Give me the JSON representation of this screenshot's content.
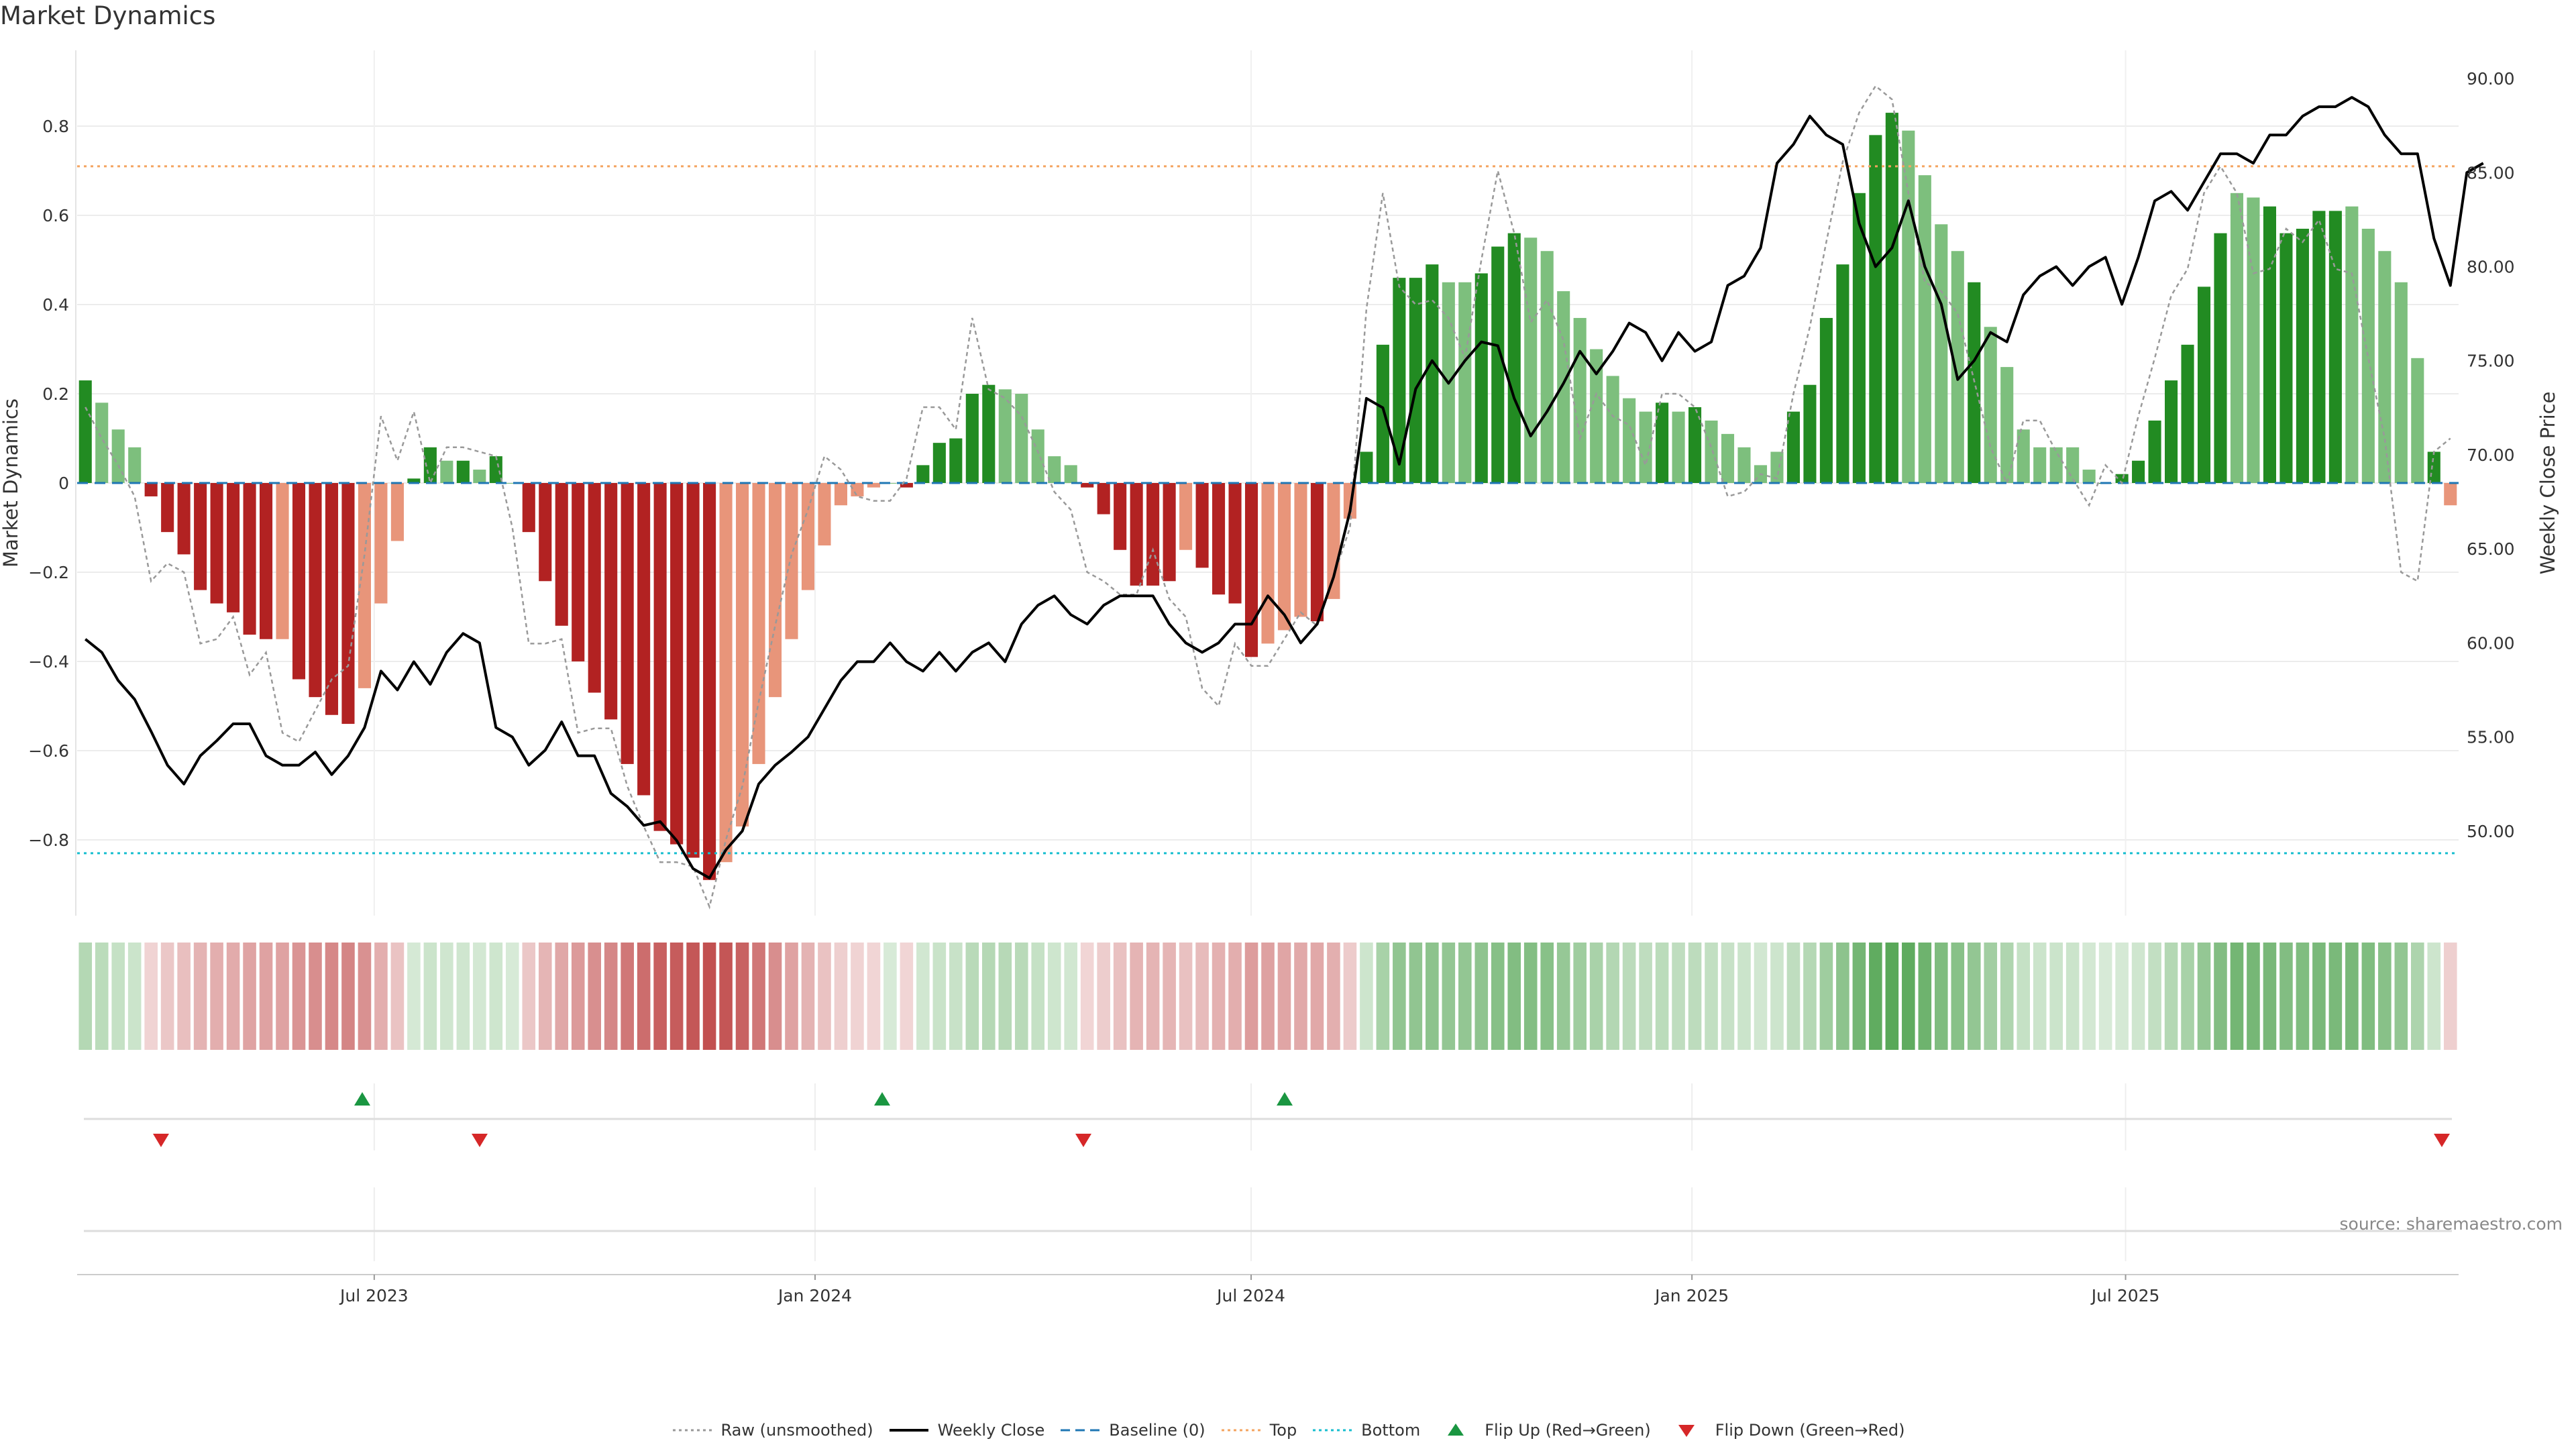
{
  "title": "Market Dynamics",
  "source_note": "source: sharemaestro.com",
  "colors": {
    "strong_green": "#228B22",
    "light_green": "#7DBF7D",
    "strong_red": "#B22222",
    "light_red": "#E8957A",
    "weekly_close": "#000000",
    "raw": "#999999",
    "baseline": "#1f77b4",
    "top_line": "#F4A460",
    "bottom_line": "#17BECF",
    "flip_up": "#1A9641",
    "flip_down": "#D62728"
  },
  "legend": [
    {
      "label": "Raw (unsmoothed)",
      "key": "raw",
      "style": "dotted",
      "icon": "dotted-line"
    },
    {
      "label": "Weekly Close",
      "key": "weekly_close",
      "style": "solid",
      "icon": "solid-line"
    },
    {
      "label": "Baseline (0)",
      "key": "baseline",
      "style": "dashed",
      "icon": "dashed-line"
    },
    {
      "label": "Top",
      "key": "top_line",
      "style": "dotted",
      "icon": "dotted-line"
    },
    {
      "label": "Bottom",
      "key": "bottom_line",
      "style": "dotted",
      "icon": "dotted-line"
    },
    {
      "label": "Flip Up (Red→Green)",
      "key": "flip_up",
      "style": "triangle-up",
      "icon": "triangle-up-icon"
    },
    {
      "label": "Flip Down (Green→Red)",
      "key": "flip_down",
      "style": "triangle-down",
      "icon": "triangle-down-icon"
    }
  ],
  "chart_data": {
    "type": "bar",
    "ylabel": "Market Dynamics",
    "ylabel_right": "Weekly Close Price",
    "ylim": [
      -0.97,
      0.97
    ],
    "ylim_right": [
      45.5,
      91.5
    ],
    "y_ticks": [
      -0.8,
      -0.6,
      -0.4,
      -0.2,
      0,
      0.2,
      0.4,
      0.6,
      0.8
    ],
    "y_tick_labels": [
      "−0.8",
      "−0.6",
      "−0.4",
      "−0.2",
      "0",
      "0.2",
      "0.4",
      "0.6",
      "0.8"
    ],
    "y_right_ticks": [
      50,
      55,
      60,
      65,
      70,
      75,
      80,
      85,
      90
    ],
    "y_right_tick_labels": [
      "50.00",
      "55.00",
      "60.00",
      "65.00",
      "70.00",
      "75.00",
      "80.00",
      "85.00",
      "90.00"
    ],
    "x_range": [
      "2023-02-27",
      "2025-11-17"
    ],
    "x_ticks": [
      "2023-07-01",
      "2024-01-01",
      "2024-07-01",
      "2025-01-01",
      "2025-07-01"
    ],
    "x_tick_labels": [
      "Jul 2023",
      "Jan 2024",
      "Jul 2024",
      "Jan 2025",
      "Jul 2025"
    ],
    "top": 0.71,
    "bottom": -0.83,
    "baseline": 0,
    "grid": true,
    "legend_position": "bottom-center",
    "series": [
      {
        "name": "Market Dynamics",
        "kind": "bar",
        "values": [
          0.23,
          0.18,
          0.12,
          0.08,
          -0.03,
          -0.11,
          -0.16,
          -0.24,
          -0.27,
          -0.29,
          -0.34,
          -0.35,
          -0.35,
          -0.44,
          -0.48,
          -0.52,
          -0.54,
          -0.46,
          -0.27,
          -0.13,
          0.01,
          0.08,
          0.05,
          0.05,
          0.03,
          0.06,
          0,
          -0.11,
          -0.22,
          -0.32,
          -0.4,
          -0.47,
          -0.53,
          -0.63,
          -0.7,
          -0.78,
          -0.81,
          -0.84,
          -0.89,
          -0.85,
          -0.77,
          -0.63,
          -0.48,
          -0.35,
          -0.24,
          -0.14,
          -0.05,
          -0.03,
          -0.01,
          0,
          -0.01,
          0.04,
          0.09,
          0.1,
          0.2,
          0.22,
          0.21,
          0.2,
          0.12,
          0.06,
          0.04,
          -0.01,
          -0.07,
          -0.15,
          -0.23,
          -0.23,
          -0.22,
          -0.15,
          -0.19,
          -0.25,
          -0.27,
          -0.39,
          -0.36,
          -0.33,
          -0.3,
          -0.31,
          -0.26,
          -0.08,
          0.07,
          0.31,
          0.46,
          0.46,
          0.49,
          0.45,
          0.45,
          0.47,
          0.53,
          0.56,
          0.55,
          0.52,
          0.43,
          0.37,
          0.3,
          0.24,
          0.19,
          0.16,
          0.18,
          0.16,
          0.17,
          0.14,
          0.11,
          0.08,
          0.04,
          0.07,
          0.16,
          0.22,
          0.37,
          0.49,
          0.65,
          0.78,
          0.83,
          0.79,
          0.69,
          0.58,
          0.52,
          0.45,
          0.35,
          0.26,
          0.12,
          0.08,
          0.08,
          0.08,
          0.03,
          0,
          0.02,
          0.05,
          0.14,
          0.23,
          0.31,
          0.44,
          0.56,
          0.65,
          0.64,
          0.62,
          0.56,
          0.57,
          0.61,
          0.61,
          0.62,
          0.57,
          0.52,
          0.45,
          0.28,
          0.07,
          -0.05
        ],
        "intensity": [
          "strong",
          "light",
          "light",
          "light",
          "strong",
          "strong",
          "strong",
          "strong",
          "strong",
          "strong",
          "strong",
          "strong",
          "light",
          "strong",
          "strong",
          "strong",
          "strong",
          "light",
          "light",
          "light",
          "strong",
          "strong",
          "light",
          "strong",
          "light",
          "strong",
          "light",
          "strong",
          "strong",
          "strong",
          "strong",
          "strong",
          "strong",
          "strong",
          "strong",
          "strong",
          "strong",
          "strong",
          "strong",
          "light",
          "light",
          "light",
          "light",
          "light",
          "light",
          "light",
          "light",
          "light",
          "light",
          "light",
          "strong",
          "strong",
          "strong",
          "strong",
          "strong",
          "strong",
          "light",
          "light",
          "light",
          "light",
          "light",
          "strong",
          "strong",
          "strong",
          "strong",
          "strong",
          "strong",
          "light",
          "strong",
          "strong",
          "strong",
          "strong",
          "light",
          "light",
          "light",
          "strong",
          "light",
          "light",
          "strong",
          "strong",
          "strong",
          "strong",
          "strong",
          "light",
          "light",
          "strong",
          "strong",
          "strong",
          "light",
          "light",
          "light",
          "light",
          "light",
          "light",
          "light",
          "light",
          "strong",
          "light",
          "strong",
          "light",
          "light",
          "light",
          "light",
          "light",
          "strong",
          "strong",
          "strong",
          "strong",
          "strong",
          "strong",
          "strong",
          "light",
          "light",
          "light",
          "light",
          "strong",
          "light",
          "light",
          "light",
          "light",
          "light",
          "light",
          "light",
          "strong",
          "strong",
          "strong",
          "strong",
          "strong",
          "strong",
          "strong",
          "strong",
          "light",
          "light",
          "strong",
          "strong",
          "strong",
          "strong",
          "strong",
          "light",
          "light",
          "light",
          "light",
          "light",
          "strong"
        ]
      },
      {
        "name": "Raw (unsmoothed)",
        "kind": "line",
        "values": [
          0.17,
          0.1,
          0.04,
          -0.03,
          -0.22,
          -0.18,
          -0.2,
          -0.36,
          -0.35,
          -0.3,
          -0.43,
          -0.38,
          -0.56,
          -0.58,
          -0.51,
          -0.44,
          -0.41,
          -0.16,
          0.15,
          0.05,
          0.16,
          0,
          0.08,
          0.08,
          0.07,
          0.06,
          -0.1,
          -0.36,
          -0.36,
          -0.35,
          -0.56,
          -0.55,
          -0.55,
          -0.68,
          -0.77,
          -0.85,
          -0.85,
          -0.86,
          -0.95,
          -0.8,
          -0.68,
          -0.49,
          -0.32,
          -0.16,
          -0.06,
          0.06,
          0.03,
          -0.03,
          -0.04,
          -0.04,
          0.01,
          0.17,
          0.17,
          0.12,
          0.37,
          0.21,
          0.19,
          0.15,
          0.07,
          -0.02,
          -0.06,
          -0.2,
          -0.22,
          -0.25,
          -0.25,
          -0.15,
          -0.26,
          -0.3,
          -0.46,
          -0.5,
          -0.36,
          -0.41,
          -0.41,
          -0.35,
          -0.29,
          -0.32,
          -0.21,
          -0.1,
          0.39,
          0.65,
          0.44,
          0.4,
          0.41,
          0.37,
          0.28,
          0.5,
          0.7,
          0.56,
          0.36,
          0.41,
          0.32,
          0.1,
          0.2,
          0.15,
          0.13,
          0.04,
          0.2,
          0.2,
          0.17,
          0.08,
          -0.03,
          -0.02,
          0.02,
          0.01,
          0.2,
          0.35,
          0.54,
          0.72,
          0.83,
          0.89,
          0.86,
          0.65,
          0.45,
          0.43,
          0.38,
          0.23,
          0.08,
          0.0,
          0.14,
          0.14,
          0.07,
          0.01,
          -0.05,
          0.04,
          0.0,
          0.15,
          0.28,
          0.42,
          0.48,
          0.65,
          0.71,
          0.65,
          0.47,
          0.48,
          0.57,
          0.54,
          0.59,
          0.48,
          0.47,
          0.28,
          0.1,
          -0.2,
          -0.22,
          0.07,
          0.1
        ]
      },
      {
        "name": "Weekly Close",
        "kind": "line",
        "axis": "right",
        "values": [
          60.2,
          59.5,
          58.0,
          57.0,
          55.3,
          53.5,
          52.5,
          54.0,
          54.8,
          55.7,
          55.7,
          54.0,
          53.5,
          53.5,
          54.2,
          53.0,
          54.0,
          55.5,
          58.5,
          57.5,
          59.0,
          57.8,
          59.5,
          60.5,
          60.0,
          55.5,
          55.0,
          53.5,
          54.3,
          55.8,
          54.0,
          54.0,
          52.0,
          51.3,
          50.3,
          50.5,
          49.5,
          48.0,
          47.5,
          49.0,
          50.0,
          52.5,
          53.5,
          54.2,
          55.0,
          56.5,
          58.0,
          59.0,
          59.0,
          60.0,
          59.0,
          58.5,
          59.5,
          58.5,
          59.5,
          60.0,
          59.0,
          61.0,
          62.0,
          62.5,
          61.5,
          61.0,
          62.0,
          62.5,
          62.5,
          62.5,
          61.0,
          60.0,
          59.5,
          60.0,
          61.0,
          61.0,
          62.5,
          61.5,
          60.0,
          61.0,
          63.5,
          67.0,
          73.0,
          72.5,
          69.5,
          73.5,
          75.0,
          73.8,
          75.0,
          76.0,
          75.8,
          73.0,
          71.0,
          72.3,
          73.8,
          75.5,
          74.3,
          75.5,
          77.0,
          76.5,
          75.0,
          76.5,
          75.5,
          76.0,
          79.0,
          79.5,
          81.0,
          85.5,
          86.5,
          88.0,
          87.0,
          86.5,
          82.3,
          80.0,
          81.0,
          83.5,
          80.0,
          78.0,
          74.0,
          75.0,
          76.5,
          76.0,
          78.5,
          79.5,
          80.0,
          79.0,
          80.0,
          80.5,
          78.0,
          80.5,
          83.5,
          84.0,
          83.0,
          84.5,
          86.0,
          86.0,
          85.5,
          87.0,
          87.0,
          88.0,
          88.5,
          88.5,
          89.0,
          88.5,
          87.0,
          86.0,
          86.0,
          81.5,
          79.0,
          85.0,
          85.5
        ]
      }
    ],
    "flip_up": [
      "2023-06-26",
      "2024-01-29",
      "2024-07-15"
    ],
    "flip_down": [
      "2023-04-03",
      "2023-08-14",
      "2024-04-22",
      "2025-11-10"
    ]
  }
}
